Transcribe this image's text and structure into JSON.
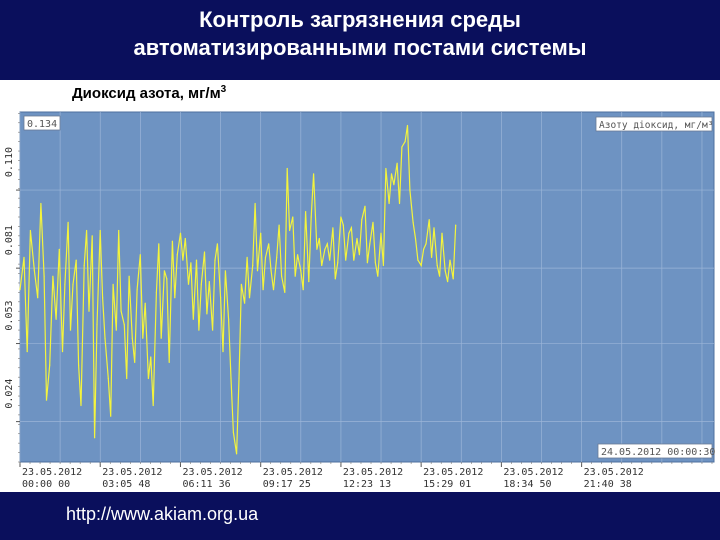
{
  "slide": {
    "title_line1": "Контроль загрязнения среды",
    "title_line2": "автоматизированными постами системы",
    "subtitle": "Диоксид азота, мг/м",
    "subtitle_sup": "3",
    "url": "http://www.akiam.org.ua"
  },
  "colors": {
    "background": "#0a0f5c",
    "plot": "#6e93c2",
    "grid": "#9bb5d8",
    "line": "#f4f43c"
  },
  "chart_data": {
    "type": "line",
    "legend": "Азоту діоксид, мг/м³",
    "legend_position": "top-right",
    "value_box": "0.134",
    "date_box": "24.05.2012 00:00:30",
    "grid": true,
    "ylim": [
      0.009,
      0.139
    ],
    "yticks": [
      "0.024",
      "0.053",
      "0.081",
      "0.110"
    ],
    "xlim": [
      0,
      8.65
    ],
    "xticks": [
      {
        "date": "23.05.2012",
        "time": "00:00 00"
      },
      {
        "date": "23.05.2012",
        "time": "03:05 48"
      },
      {
        "date": "23.05.2012",
        "time": "06:11 36"
      },
      {
        "date": "23.05.2012",
        "time": "09:17 25"
      },
      {
        "date": "23.05.2012",
        "time": "12:23 13"
      },
      {
        "date": "23.05.2012",
        "time": "15:29 01"
      },
      {
        "date": "23.05.2012",
        "time": "18:34 50"
      },
      {
        "date": "23.05.2012",
        "time": "21:40 38"
      }
    ],
    "series": [
      {
        "values": [
          [
            0.0,
            0.073
          ],
          [
            0.05,
            0.085
          ],
          [
            0.09,
            0.05
          ],
          [
            0.13,
            0.095
          ],
          [
            0.18,
            0.08
          ],
          [
            0.22,
            0.07
          ],
          [
            0.26,
            0.105
          ],
          [
            0.3,
            0.078
          ],
          [
            0.33,
            0.032
          ],
          [
            0.37,
            0.045
          ],
          [
            0.41,
            0.078
          ],
          [
            0.45,
            0.062
          ],
          [
            0.49,
            0.088
          ],
          [
            0.53,
            0.05
          ],
          [
            0.56,
            0.075
          ],
          [
            0.6,
            0.098
          ],
          [
            0.63,
            0.058
          ],
          [
            0.66,
            0.075
          ],
          [
            0.7,
            0.084
          ],
          [
            0.73,
            0.045
          ],
          [
            0.76,
            0.03
          ],
          [
            0.8,
            0.082
          ],
          [
            0.83,
            0.095
          ],
          [
            0.86,
            0.065
          ],
          [
            0.9,
            0.093
          ],
          [
            0.93,
            0.018
          ],
          [
            0.96,
            0.06
          ],
          [
            1.0,
            0.095
          ],
          [
            1.03,
            0.07
          ],
          [
            1.06,
            0.055
          ],
          [
            1.1,
            0.04
          ],
          [
            1.13,
            0.026
          ],
          [
            1.16,
            0.075
          ],
          [
            1.2,
            0.058
          ],
          [
            1.23,
            0.095
          ],
          [
            1.26,
            0.065
          ],
          [
            1.3,
            0.06
          ],
          [
            1.33,
            0.04
          ],
          [
            1.36,
            0.078
          ],
          [
            1.4,
            0.055
          ],
          [
            1.43,
            0.046
          ],
          [
            1.46,
            0.073
          ],
          [
            1.5,
            0.086
          ],
          [
            1.53,
            0.055
          ],
          [
            1.56,
            0.068
          ],
          [
            1.6,
            0.04
          ],
          [
            1.63,
            0.048
          ],
          [
            1.66,
            0.03
          ],
          [
            1.7,
            0.072
          ],
          [
            1.73,
            0.09
          ],
          [
            1.76,
            0.055
          ],
          [
            1.8,
            0.08
          ],
          [
            1.83,
            0.077
          ],
          [
            1.86,
            0.046
          ],
          [
            1.9,
            0.091
          ],
          [
            1.93,
            0.07
          ],
          [
            1.96,
            0.086
          ],
          [
            2.0,
            0.094
          ],
          [
            2.03,
            0.084
          ],
          [
            2.06,
            0.092
          ],
          [
            2.1,
            0.075
          ],
          [
            2.13,
            0.083
          ],
          [
            2.16,
            0.062
          ],
          [
            2.2,
            0.084
          ],
          [
            2.23,
            0.058
          ],
          [
            2.26,
            0.075
          ],
          [
            2.3,
            0.087
          ],
          [
            2.33,
            0.064
          ],
          [
            2.36,
            0.076
          ],
          [
            2.4,
            0.058
          ],
          [
            2.43,
            0.084
          ],
          [
            2.46,
            0.09
          ],
          [
            2.5,
            0.07
          ],
          [
            2.53,
            0.05
          ],
          [
            2.56,
            0.08
          ],
          [
            2.6,
            0.062
          ],
          [
            2.63,
            0.04
          ],
          [
            2.66,
            0.02
          ],
          [
            2.7,
            0.012
          ],
          [
            2.73,
            0.04
          ],
          [
            2.76,
            0.075
          ],
          [
            2.8,
            0.068
          ],
          [
            2.83,
            0.085
          ],
          [
            2.86,
            0.07
          ],
          [
            2.9,
            0.082
          ],
          [
            2.93,
            0.105
          ],
          [
            2.96,
            0.08
          ],
          [
            3.0,
            0.094
          ],
          [
            3.03,
            0.073
          ],
          [
            3.06,
            0.085
          ],
          [
            3.1,
            0.09
          ],
          [
            3.13,
            0.08
          ],
          [
            3.16,
            0.073
          ],
          [
            3.2,
            0.085
          ],
          [
            3.23,
            0.097
          ],
          [
            3.26,
            0.078
          ],
          [
            3.3,
            0.072
          ],
          [
            3.33,
            0.118
          ],
          [
            3.36,
            0.095
          ],
          [
            3.4,
            0.1
          ],
          [
            3.43,
            0.078
          ],
          [
            3.46,
            0.086
          ],
          [
            3.5,
            0.08
          ],
          [
            3.53,
            0.073
          ],
          [
            3.56,
            0.102
          ],
          [
            3.6,
            0.076
          ],
          [
            3.63,
            0.1
          ],
          [
            3.66,
            0.116
          ],
          [
            3.7,
            0.088
          ],
          [
            3.73,
            0.092
          ],
          [
            3.76,
            0.082
          ],
          [
            3.8,
            0.088
          ],
          [
            3.83,
            0.09
          ],
          [
            3.86,
            0.084
          ],
          [
            3.9,
            0.096
          ],
          [
            3.93,
            0.077
          ],
          [
            3.96,
            0.083
          ],
          [
            4.0,
            0.1
          ],
          [
            4.03,
            0.097
          ],
          [
            4.06,
            0.084
          ],
          [
            4.1,
            0.094
          ],
          [
            4.13,
            0.096
          ],
          [
            4.16,
            0.084
          ],
          [
            4.2,
            0.092
          ],
          [
            4.23,
            0.086
          ],
          [
            4.26,
            0.099
          ],
          [
            4.3,
            0.104
          ],
          [
            4.33,
            0.083
          ],
          [
            4.36,
            0.09
          ],
          [
            4.4,
            0.098
          ],
          [
            4.43,
            0.083
          ],
          [
            4.46,
            0.078
          ],
          [
            4.5,
            0.094
          ],
          [
            4.53,
            0.082
          ],
          [
            4.56,
            0.118
          ],
          [
            4.6,
            0.105
          ],
          [
            4.63,
            0.116
          ],
          [
            4.66,
            0.112
          ],
          [
            4.7,
            0.12
          ],
          [
            4.73,
            0.105
          ],
          [
            4.76,
            0.126
          ],
          [
            4.8,
            0.128
          ],
          [
            4.83,
            0.134
          ],
          [
            4.86,
            0.11
          ],
          [
            4.9,
            0.098
          ],
          [
            4.93,
            0.092
          ],
          [
            4.96,
            0.084
          ],
          [
            5.0,
            0.082
          ],
          [
            5.03,
            0.088
          ],
          [
            5.06,
            0.09
          ],
          [
            5.1,
            0.099
          ],
          [
            5.13,
            0.085
          ],
          [
            5.16,
            0.096
          ],
          [
            5.2,
            0.082
          ],
          [
            5.23,
            0.078
          ],
          [
            5.26,
            0.094
          ],
          [
            5.3,
            0.08
          ],
          [
            5.33,
            0.076
          ],
          [
            5.36,
            0.084
          ],
          [
            5.4,
            0.077
          ],
          [
            5.43,
            0.097
          ]
        ]
      }
    ]
  }
}
